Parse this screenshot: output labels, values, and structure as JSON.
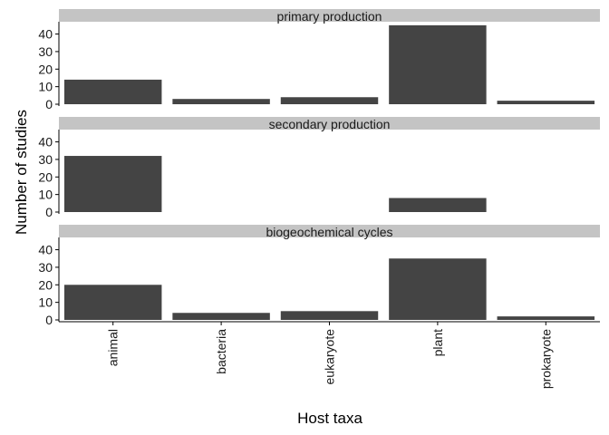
{
  "chart_data": {
    "type": "bar",
    "xlabel": "Host taxa",
    "ylabel": "Number of studies",
    "ylim": [
      0,
      47
    ],
    "yticks": [
      0,
      10,
      20,
      30,
      40
    ],
    "categories": [
      "animal",
      "bacteria",
      "eukaryote",
      "plant",
      "prokaryote"
    ],
    "grid": false,
    "bar_color": "#444444",
    "strip_color": "#c4c4c4",
    "facets": [
      {
        "name": "primary production",
        "values": [
          14,
          3,
          4,
          45,
          2
        ]
      },
      {
        "name": "secondary production",
        "values": [
          32,
          0,
          0,
          8,
          0
        ]
      },
      {
        "name": "biogeochemical cycles",
        "values": [
          20,
          4,
          5,
          35,
          2
        ]
      }
    ]
  }
}
